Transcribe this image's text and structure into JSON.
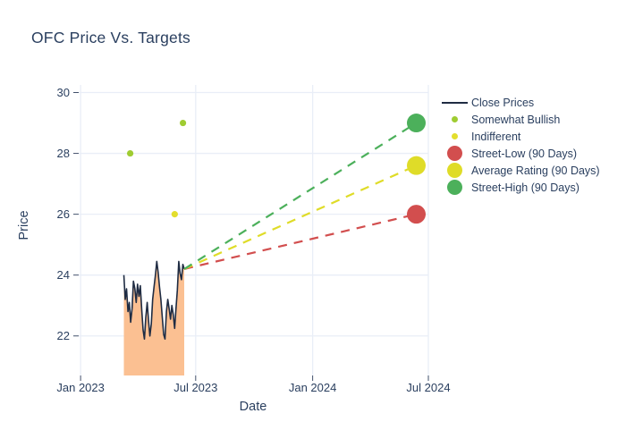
{
  "title": "OFC Price Vs. Targets",
  "colors": {
    "text": "#2a3f5f",
    "grid": "#e9eef7",
    "tick": "#42506b",
    "background": "#ffffff",
    "close_line": "#1f2c43",
    "close_fill": "#fbc092",
    "somewhat_bullish": "#9fcc32",
    "indifferent": "#e3de2d",
    "street_low": "#d24e4e",
    "average_rating": "#dfdc28",
    "street_high": "#4cb05b"
  },
  "legend": {
    "items": [
      {
        "label": "Close Prices",
        "marker": "line",
        "color_key": "close_line"
      },
      {
        "label": "Somewhat Bullish",
        "marker": "dot-small",
        "color_key": "somewhat_bullish"
      },
      {
        "label": "Indifferent",
        "marker": "dot-small",
        "color_key": "indifferent"
      },
      {
        "label": "Street-Low (90 Days)",
        "marker": "dot-large",
        "color_key": "street_low"
      },
      {
        "label": "Average Rating (90 Days)",
        "marker": "dot-large",
        "color_key": "average_rating"
      },
      {
        "label": "Street-High (90 Days)",
        "marker": "dot-large",
        "color_key": "street_high"
      }
    ]
  },
  "chart_data": {
    "type": "line",
    "title": "OFC Price Vs. Targets",
    "xlabel": "Date",
    "ylabel": "Price",
    "x_axis": {
      "tick_labels": [
        "Jan 2023",
        "Jul 2023",
        "Jan 2024",
        "Jul 2024"
      ],
      "tick_dates": [
        "2023-01-01",
        "2023-07-01",
        "2024-01-01",
        "2024-07-01"
      ],
      "range": [
        "2022-12-29",
        "2024-07-01"
      ],
      "grid": true
    },
    "y_axis": {
      "ticks": [
        22,
        24,
        26,
        28,
        30
      ],
      "range": [
        20.7,
        30.25
      ],
      "grid": true
    },
    "close_prices": {
      "name": "Close Prices",
      "type": "line+area",
      "date_start": "2023-03-10",
      "date_end": "2023-06-13",
      "values": [
        24.0,
        23.2,
        23.55,
        22.8,
        23.1,
        22.45,
        22.9,
        23.8,
        23.55,
        23.1,
        23.7,
        23.3,
        23.65,
        22.9,
        22.2,
        21.9,
        22.6,
        23.1,
        22.5,
        22.0,
        22.4,
        23.2,
        23.6,
        24.0,
        24.45,
        24.1,
        23.6,
        23.2,
        22.6,
        22.05,
        21.9,
        22.8,
        23.2,
        22.9,
        22.55,
        23.0,
        22.7,
        22.25,
        22.9,
        23.5,
        24.45,
        24.05,
        23.85,
        24.35,
        24.2
      ]
    },
    "ratings": [
      {
        "name": "Somewhat Bullish",
        "color_key": "somewhat_bullish",
        "points": [
          {
            "date": "2023-03-20",
            "value": 28.0
          },
          {
            "date": "2023-06-11",
            "value": 29.0
          }
        ]
      },
      {
        "name": "Indifferent",
        "color_key": "indifferent",
        "points": [
          {
            "date": "2023-05-29",
            "value": 26.0
          }
        ]
      }
    ],
    "targets": [
      {
        "name": "Street-Low (90 Days)",
        "color_key": "street_low",
        "date": "2024-06-12",
        "value": 26.0
      },
      {
        "name": "Average Rating (90 Days)",
        "color_key": "average_rating",
        "date": "2024-06-12",
        "value": 27.6
      },
      {
        "name": "Street-High (90 Days)",
        "color_key": "street_high",
        "date": "2024-06-12",
        "value": 29.0
      }
    ],
    "projection_origin": {
      "date": "2023-06-13",
      "value": 24.2
    },
    "legend_position": "right"
  }
}
